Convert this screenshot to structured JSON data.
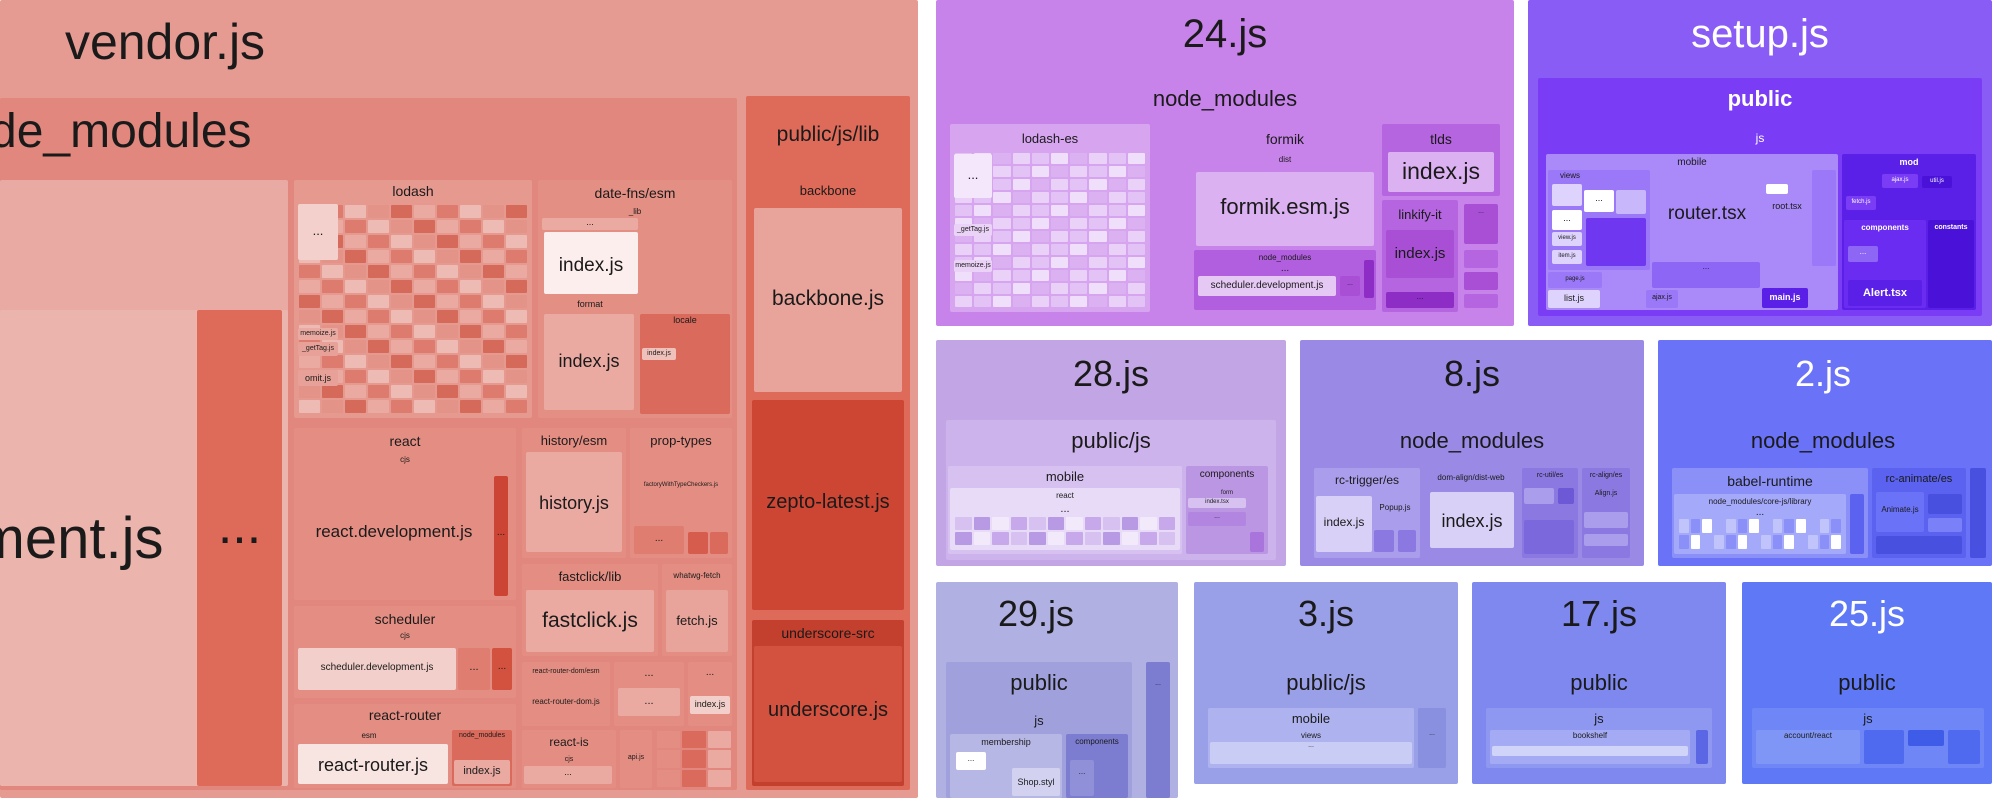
{
  "vendor": {
    "title": "vendor.js",
    "node_modules": "de_modules",
    "development_js": "ment.js",
    "more": "...",
    "lodash": {
      "label": "lodash",
      "more": "...",
      "memoize": "memoize.js",
      "getTag": "_getTag.js",
      "omit": "omit.js"
    },
    "date_fns": {
      "label": "date-fns/esm",
      "lib": "_lib",
      "more": "...",
      "index": "index.js",
      "format": "format",
      "format_index": "index.js",
      "locale": "locale",
      "locale_index": "index.js"
    },
    "react": {
      "label": "react",
      "cjs": "cjs",
      "file": "react.development.js",
      "more": "..."
    },
    "history": {
      "label": "history/esm",
      "file": "history.js"
    },
    "prop_types": {
      "label": "prop-types",
      "checker": "factoryWithTypeCheckers.js",
      "more": "..."
    },
    "scheduler": {
      "label": "scheduler",
      "cjs": "cjs",
      "file": "scheduler.development.js",
      "more": "..."
    },
    "fastclick": {
      "label": "fastclick/lib",
      "file": "fastclick.js"
    },
    "whatwg": {
      "label": "whatwg-fetch",
      "file": "fetch.js"
    },
    "react_router_dom": {
      "label": "react-router-dom/esm",
      "file": "react-router-dom.js"
    },
    "misc_more": "...",
    "misc_index": "index.js",
    "react_router": {
      "label": "react-router",
      "esm": "esm",
      "file": "react-router.js",
      "node_modules": "node_modules",
      "index": "index.js"
    },
    "react_is": {
      "label": "react-is",
      "cjs": "cjs",
      "more": "..."
    },
    "qs_index": "api.js",
    "public_lib": {
      "label": "public/js/lib",
      "backbone": "backbone",
      "backbone_file": "backbone.js",
      "zepto": "zepto-latest.js",
      "underscore": "underscore-src",
      "underscore_file": "underscore.js"
    }
  },
  "c24": {
    "title": "24.js",
    "node_modules": "node_modules",
    "lodash_es": "lodash-es",
    "more": "...",
    "getTag": "_getTag.js",
    "memoize": "memoize.js",
    "formik": "formik",
    "dist": "dist",
    "formik_file": "formik.esm.js",
    "nm2": "node_modules",
    "scheduler": "scheduler.development.js",
    "tlds": "tlds",
    "tlds_index": "index.js",
    "linkify": "linkify-it",
    "linkify_index": "index.js"
  },
  "setup": {
    "title": "setup.js",
    "public": "public",
    "js": "js",
    "mobile": "mobile",
    "views": "views",
    "router": "router.tsx",
    "root": "root.tsx",
    "more": "...",
    "view": "view.js",
    "item": "item.js",
    "page": "page.js",
    "ajax": "ajax.js",
    "list": "list.js",
    "main": "main.js",
    "mod": "mod",
    "components": "components",
    "constants": "constants",
    "alert": "Alert.tsx",
    "fetch": "fetch.js",
    "ajax2": "ajax.js",
    "util": "util.js"
  },
  "c28": {
    "title": "28.js",
    "public": "public/js",
    "mobile": "mobile",
    "react": "react",
    "more": "...",
    "components": "components",
    "form": "form",
    "index": "index.tsx"
  },
  "c8": {
    "title": "8.js",
    "node_modules": "node_modules",
    "trigger": "rc-trigger/es",
    "trigger_index": "index.js",
    "popup": "Popup.js",
    "align": "dom-align/dist-web",
    "align_index": "index.js",
    "util": "rc-util/es",
    "rcalign": "rc-align/es",
    "alignjs": "Align.js"
  },
  "c2": {
    "title": "2.js",
    "node_modules": "node_modules",
    "babel": "babel-runtime",
    "corejs": "node_modules/core-js/library",
    "more": "...",
    "animate": "rc-animate/es",
    "animatejs": "Animate.js"
  },
  "c29": {
    "title": "29.js",
    "public": "public",
    "js": "js",
    "membership": "membership",
    "components": "components",
    "more": "...",
    "shop": "Shop.styl"
  },
  "c3": {
    "title": "3.js",
    "public": "public/js",
    "mobile": "mobile",
    "views": "views",
    "more": "..."
  },
  "c17": {
    "title": "17.js",
    "public": "public",
    "js": "js",
    "bookshelf": "bookshelf"
  },
  "c25": {
    "title": "25.js",
    "public": "public",
    "js": "js",
    "account": "account/react"
  },
  "colors": {
    "vendor": "#e59b92",
    "vendor_deep": "#d2513f",
    "purple": "#c883ea",
    "indigo": "#8a5cf6",
    "blue": "#6a72f8"
  }
}
